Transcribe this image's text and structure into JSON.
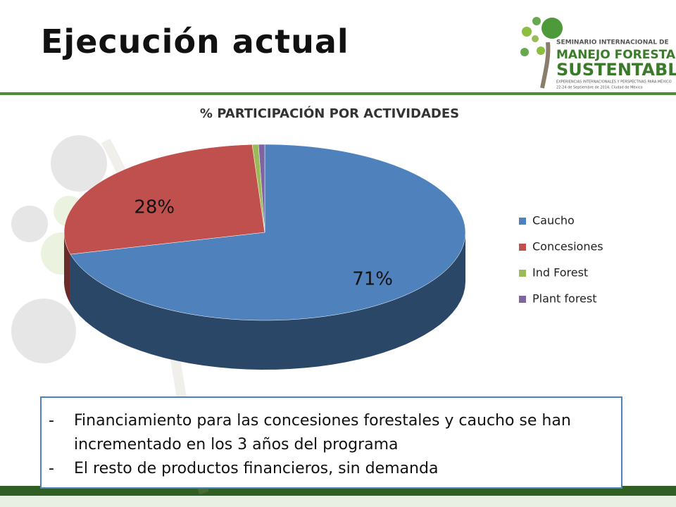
{
  "title": "Ejecución actual",
  "logo": {
    "line1": "SEMINARIO INTERNACIONAL DE",
    "line2": "MANEJO FORESTAL",
    "line3": "SUSTENTABLE",
    "line4": "EXPERIENCIAS INTERNACIONALES Y PERSPECTIVAS PARA MÉXICO",
    "line5": "22-24 de Septiembre de 2014, Ciudad de México"
  },
  "chart_data": {
    "type": "pie",
    "title": "% PARTICIPACIÓN POR ACTIVIDADES",
    "categories": [
      "Caucho",
      "Concesiones",
      "Ind Forest",
      "Plant forest"
    ],
    "values": [
      71,
      28,
      0.5,
      0.5
    ],
    "value_labels": [
      "71%",
      "28%",
      null,
      null
    ],
    "colors": [
      "#4f81bd",
      "#c0504d",
      "#9bbb59",
      "#8064a2"
    ],
    "legend": "right"
  },
  "notes": [
    {
      "marker": "-",
      "text": "Financiamiento para las concesiones forestales y caucho se han incrementado en los 3 años del programa"
    },
    {
      "marker": "-",
      "text": "El resto de productos financieros, sin demanda"
    }
  ]
}
